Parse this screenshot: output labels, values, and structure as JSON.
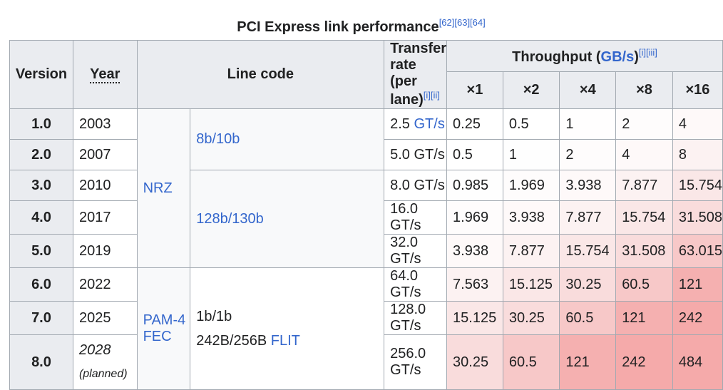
{
  "caption": {
    "text": "PCI Express link performance",
    "refs": "[62][63][64]"
  },
  "headers": {
    "version": "Version",
    "year": "Year",
    "line_code": "Line code",
    "transfer_rate_line1": "Transfer rate",
    "transfer_rate_line2": "(per lane)",
    "transfer_rate_refs": "[i][ii]",
    "throughput": "Throughput (",
    "throughput_unit": "GB/s",
    "throughput_close": ")",
    "throughput_refs": "[i][iii]",
    "lanes": [
      "×1",
      "×2",
      "×4",
      "×8",
      "×16"
    ]
  },
  "line_codes": {
    "nrz": "NRZ",
    "pam4": "PAM-4",
    "fec": "FEC",
    "code_8b10b": "8b/10b",
    "code_128b130b": "128b/130b",
    "code_1b1b": "1b/1b",
    "code_242b": "242B/256B",
    "flit": "FLIT"
  },
  "rows": [
    {
      "version": "1.0",
      "year": "2003",
      "rate": "2.5",
      "unit": "GT/s",
      "unit_link": true,
      "x1": "0.25",
      "x2": "0.5",
      "x4": "1",
      "x8": "2",
      "x16": "4",
      "colors": [
        "#ffffff",
        "#ffffff",
        "#fffefe",
        "#fefcfc",
        "#fef9f9"
      ]
    },
    {
      "version": "2.0",
      "year": "2007",
      "rate": "5.0",
      "unit": "GT/s",
      "unit_link": false,
      "x1": "0.5",
      "x2": "1",
      "x4": "2",
      "x8": "4",
      "x16": "8",
      "colors": [
        "#ffffff",
        "#fefefe",
        "#fefcfc",
        "#fef9f9",
        "#fcf2f2"
      ]
    },
    {
      "version": "3.0",
      "year": "2010",
      "rate": "8.0",
      "unit": "GT/s",
      "unit_link": false,
      "x1": "0.985",
      "x2": "1.969",
      "x4": "3.938",
      "x8": "7.877",
      "x16": "15.754",
      "colors": [
        "#fefefe",
        "#fefcfc",
        "#fef9f9",
        "#fcf2f2",
        "#fae7e7"
      ]
    },
    {
      "version": "4.0",
      "year": "2017",
      "rate": "16.0",
      "unit": "GT/s",
      "unit_link": false,
      "x1": "1.969",
      "x2": "3.938",
      "x4": "7.877",
      "x8": "15.754",
      "x16": "31.508",
      "colors": [
        "#fefcfc",
        "#fef9f9",
        "#fcf2f2",
        "#fae7e7",
        "#f9dcdc"
      ]
    },
    {
      "version": "5.0",
      "year": "2019",
      "rate": "32.0",
      "unit": "GT/s",
      "unit_link": false,
      "x1": "3.938",
      "x2": "7.877",
      "x4": "15.754",
      "x8": "31.508",
      "x16": "63.015",
      "colors": [
        "#fef9f9",
        "#fcf2f2",
        "#fae7e7",
        "#f9dcdc",
        "#f7c8c8"
      ]
    },
    {
      "version": "6.0",
      "year": "2022",
      "rate": "64.0",
      "unit": "GT/s",
      "unit_link": false,
      "x1": "7.563",
      "x2": "15.125",
      "x4": "30.25",
      "x8": "60.5",
      "x16": "121",
      "colors": [
        "#fcf2f2",
        "#fae7e7",
        "#f9dcdc",
        "#f7c8c8",
        "#f5b0b0"
      ]
    },
    {
      "version": "7.0",
      "year": "2025",
      "rate": "128.0",
      "unit": "GT/s",
      "unit_link": false,
      "x1": "15.125",
      "x2": "30.25",
      "x4": "60.5",
      "x8": "121",
      "x16": "242",
      "colors": [
        "#fae7e7",
        "#f9dcdc",
        "#f7c8c8",
        "#f5b0b0",
        "#f5aaaa"
      ]
    },
    {
      "version": "8.0",
      "year": "2028",
      "year_note": "(planned)",
      "rate": "256.0",
      "unit": "GT/s",
      "unit_link": false,
      "x1": "30.25",
      "x2": "60.5",
      "x4": "121",
      "x8": "242",
      "x16": "484",
      "colors": [
        "#f9dcdc",
        "#f7c8c8",
        "#f5b0b0",
        "#f5aaaa",
        "#f5aaaa"
      ]
    }
  ]
}
